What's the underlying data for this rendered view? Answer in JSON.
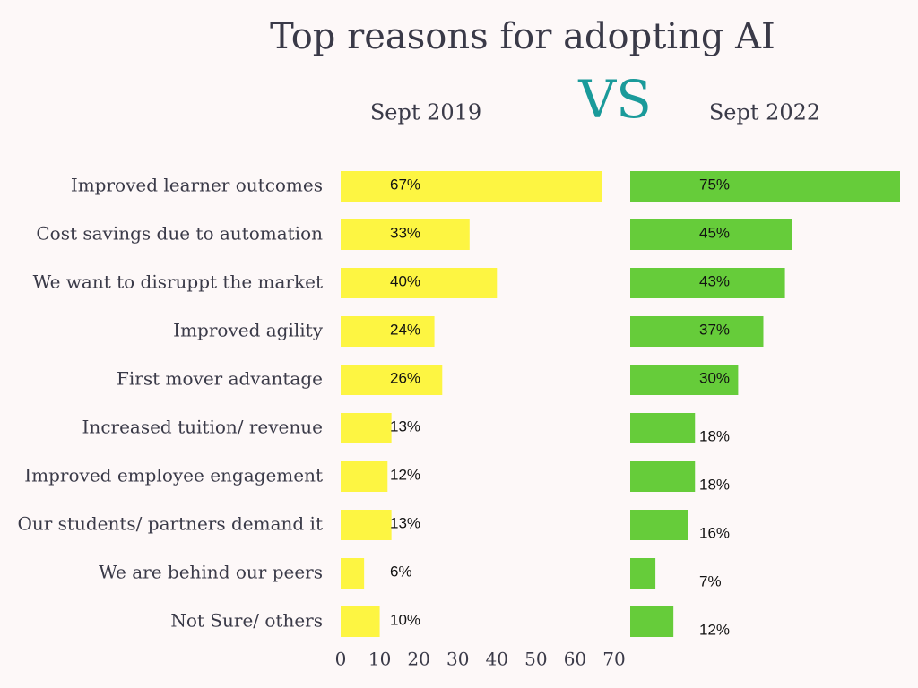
{
  "chart_data": [
    {
      "type": "bar",
      "orientation": "horizontal",
      "title": "Top reasons for adopting AI",
      "annotation": "VS",
      "subtitle": "Sept 2019",
      "categories": [
        "Improved learner outcomes",
        "Cost savings due to automation",
        "We want to disruppt the market",
        "Improved agility",
        "First mover advantage",
        "Increased tuition/ revenue",
        "Improved employee engagement",
        "Our students/ partners demand it",
        "We are behind our peers",
        "Not Sure/ others"
      ],
      "values": [
        67,
        33,
        40,
        24,
        26,
        13,
        12,
        13,
        6,
        10
      ],
      "value_labels": [
        "67%",
        "33%",
        "40%",
        "24%",
        "26%",
        "13%",
        "12%",
        "13%",
        "6%",
        "10%"
      ],
      "color": "#fdf542",
      "xlim": [
        0,
        70
      ],
      "xticks": [
        0,
        10,
        20,
        30,
        40,
        50,
        60,
        70
      ]
    },
    {
      "type": "bar",
      "orientation": "horizontal",
      "subtitle": "Sept 2022",
      "values": [
        75,
        45,
        43,
        37,
        30,
        18,
        18,
        16,
        7,
        12
      ],
      "value_labels": [
        "75%",
        "45%",
        "43%",
        "37%",
        "30%",
        "18%",
        "18%",
        "16%",
        "7%",
        "12%"
      ],
      "color": "#66cc3a",
      "xlim": [
        0,
        75
      ]
    }
  ]
}
